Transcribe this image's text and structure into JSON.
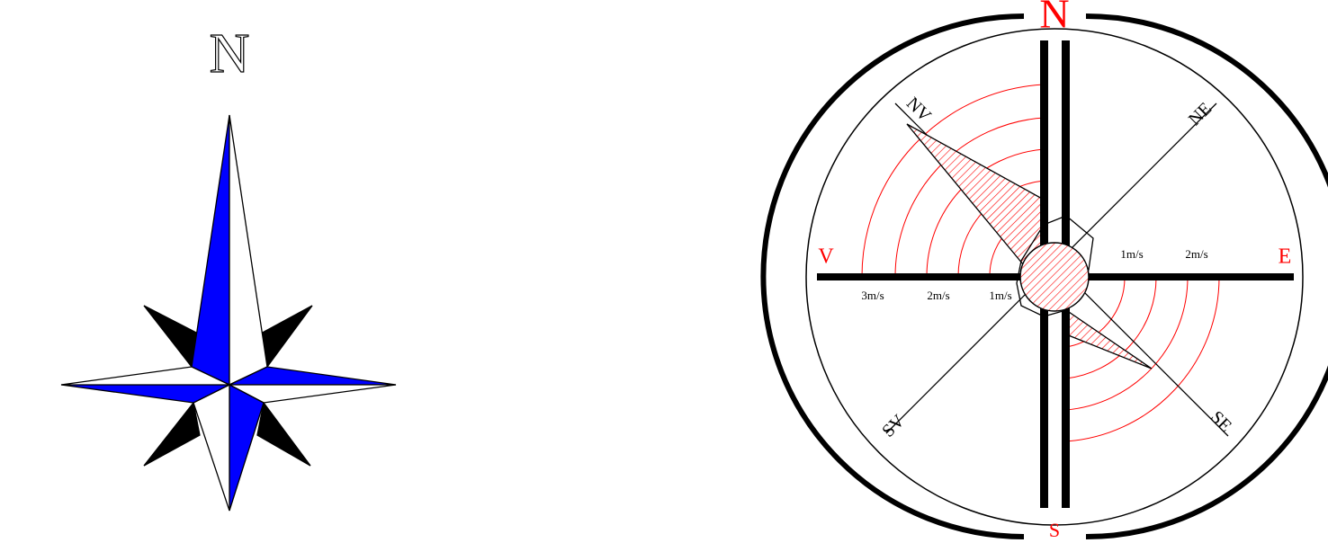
{
  "compass_rose": {
    "north_label": "N"
  },
  "wind_rose": {
    "cardinal_labels": [
      "N",
      "S",
      "V",
      "E"
    ],
    "intercardinal_labels": [
      "NV",
      "NE",
      "SV",
      "SE"
    ],
    "speed_labels_west": [
      "3m/s",
      "2m/s",
      "1m/s"
    ],
    "speed_labels_east": [
      "1m/s",
      "2m/s"
    ]
  }
}
